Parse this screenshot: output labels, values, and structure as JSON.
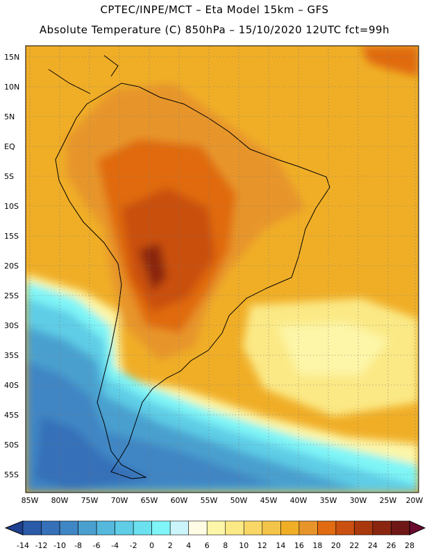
{
  "header": {
    "line1": "CPTEC/INPE/MCT –  Eta Model 15km – GFS",
    "line2": "Absolute Temperature (C) 850hPa – 15/10/2020 12UTC fct=99h"
  },
  "map": {
    "lat_labels": [
      "15N",
      "10N",
      "5N",
      "EQ",
      "5S",
      "10S",
      "15S",
      "20S",
      "25S",
      "30S",
      "35S",
      "40S",
      "45S",
      "50S",
      "55S"
    ],
    "lon_labels": [
      "85W",
      "80W",
      "75W",
      "70W",
      "65W",
      "60W",
      "55W",
      "50W",
      "45W",
      "40W",
      "35W",
      "30W",
      "25W",
      "20W"
    ]
  },
  "colorbar": {
    "labels": [
      "-14",
      "-12",
      "-10",
      "-8",
      "-6",
      "-4",
      "-2",
      "0",
      "2",
      "4",
      "6",
      "8",
      "10",
      "12",
      "14",
      "16",
      "18",
      "20",
      "22",
      "24",
      "26",
      "28"
    ],
    "colors": [
      "#1f3f8f",
      "#2a5aa8",
      "#3570b8",
      "#3f86c4",
      "#49a0cf",
      "#55b8dc",
      "#5fcde6",
      "#6be0ee",
      "#7ff5f7",
      "#ccf4fb",
      "#fffbe4",
      "#fdf6a8",
      "#fbe985",
      "#f8d766",
      "#f3c44a",
      "#f0ae27",
      "#e7952a",
      "#e06b10",
      "#c95010",
      "#a9390c",
      "#8a2610",
      "#6e1716",
      "#6a0a2e"
    ]
  }
}
